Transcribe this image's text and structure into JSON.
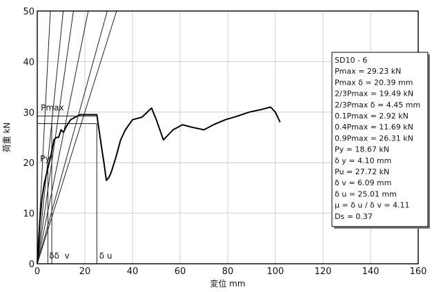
{
  "chart_data": {
    "type": "line",
    "title": "",
    "xlabel": "変位 mm",
    "ylabel": "荷重 kN",
    "xlim": [
      0,
      160
    ],
    "ylim": [
      0,
      50
    ],
    "xticks": [
      "0",
      "20",
      "40",
      "60",
      "80",
      "100",
      "120",
      "140",
      "160"
    ],
    "yticks": [
      "0",
      "10",
      "20",
      "30",
      "40",
      "50"
    ],
    "grid": true,
    "series": [
      {
        "name": "",
        "x": [
          0,
          1,
          2,
          3,
          4,
          5,
          6,
          7,
          8,
          9,
          10,
          11,
          12,
          14,
          16,
          18,
          20,
          22,
          24,
          25,
          27,
          28,
          29,
          30,
          31,
          33,
          35,
          37,
          40,
          44,
          48,
          50,
          53,
          57,
          61,
          65,
          70,
          74,
          79,
          84,
          89,
          94,
          98,
          100,
          102
        ],
        "y": [
          0,
          8,
          13,
          16,
          18,
          20,
          22,
          24.5,
          25,
          25,
          26.5,
          26,
          27,
          28.5,
          29,
          29.5,
          29.5,
          29.5,
          29.5,
          29.5,
          23,
          20,
          16.5,
          17,
          18,
          21,
          24.5,
          26.5,
          28.5,
          29,
          30.8,
          28.5,
          24.5,
          26.5,
          27.5,
          27,
          26.5,
          27.5,
          28.5,
          29.2,
          30,
          30.5,
          31,
          30,
          28
        ]
      }
    ],
    "reference_lines": [
      {
        "x": [
          0,
          10.9
        ],
        "y": [
          0,
          50
        ]
      },
      {
        "x": [
          0,
          5.5
        ],
        "y": [
          0,
          50
        ]
      },
      {
        "x": [
          0,
          15.2
        ],
        "y": [
          0,
          50
        ]
      },
      {
        "x": [
          0,
          21.4
        ],
        "y": [
          0,
          50
        ]
      },
      {
        "x": [
          0,
          29.4
        ],
        "y": [
          0,
          50
        ]
      },
      {
        "x": [
          0,
          33.3
        ],
        "y": [
          0,
          50
        ]
      },
      {
        "x": [
          0,
          25.01
        ],
        "y": [
          27.72,
          27.72
        ]
      },
      {
        "x": [
          0,
          25.01
        ],
        "y": [
          29.23,
          29.23
        ]
      },
      {
        "x": [
          4.45,
          4.45
        ],
        "y": [
          0,
          19.49
        ]
      },
      {
        "x": [
          6.09,
          6.09
        ],
        "y": [
          0,
          27.72
        ]
      },
      {
        "x": [
          25.01,
          25.01
        ],
        "y": [
          0,
          27.72
        ]
      }
    ],
    "annotations": [
      {
        "text": "Pmax",
        "x": 1.5,
        "y": 30.3
      },
      {
        "text": "Py",
        "x": 1.2,
        "y": 20.2
      },
      {
        "text": "δδ",
        "x": 5,
        "y": 1
      },
      {
        "text": "v",
        "x": 11.5,
        "y": 1
      },
      {
        "text": "δ u",
        "x": 26,
        "y": 1
      }
    ],
    "legend_position": "right",
    "legend_lines": [
      "SD10 - 6",
      "Pmax = 29.23 kN",
      "Pmax δ = 20.39 mm",
      "2/3Pmax = 19.49 kN",
      "2/3Pmax δ = 4.45 mm",
      "0.1Pmax = 2.92 kN",
      "0.4Pmax = 11.69 kN",
      "0.9Pmax = 26.31 kN",
      "Py = 18.67 kN",
      "δ y = 4.10 mm",
      "Pu = 27.72 kN",
      "δ v = 6.09 mm",
      "δ u = 25.01 mm",
      "μ = δ u / δ v = 4.11",
      "Ds = 0.37"
    ]
  }
}
